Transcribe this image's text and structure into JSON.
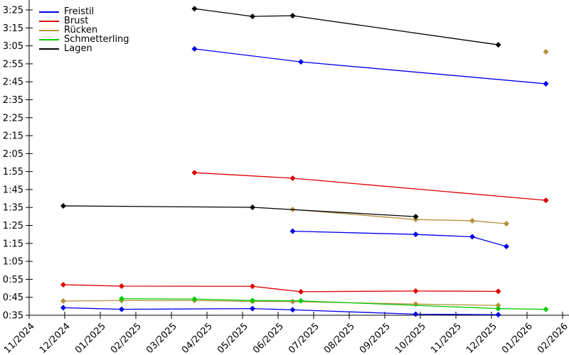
{
  "chart_data": {
    "type": "line",
    "title": "",
    "description": "Swim time progression per stroke; several distance segments per stroke; y axis is time m:ss, x axis is month/year",
    "x_axis": {
      "label": "",
      "origin_label": "11/2024",
      "tick_labels": [
        "11/2024",
        "12/2024",
        "01/2025",
        "02/2025",
        "03/2025",
        "04/2025",
        "05/2025",
        "06/2025",
        "07/2025",
        "08/2025",
        "09/2025",
        "10/2025",
        "11/2025",
        "12/2025",
        "01/2026",
        "02/2026"
      ],
      "range_month_offsets": [
        0,
        15.18
      ]
    },
    "y_axis": {
      "label": "",
      "unit": "m:ss",
      "tick_labels": [
        "0:35",
        "0:45",
        "0:55",
        "1:05",
        "1:15",
        "1:25",
        "1:35",
        "1:45",
        "1:55",
        "2:05",
        "2:15",
        "2:25",
        "2:35",
        "2:45",
        "2:55",
        "3:05",
        "3:15",
        "3:25"
      ],
      "tick_seconds": [
        35,
        45,
        55,
        65,
        75,
        85,
        95,
        105,
        115,
        125,
        135,
        145,
        155,
        165,
        175,
        185,
        195,
        205
      ],
      "range_seconds": [
        35,
        210.5
      ]
    },
    "legend": {
      "position": "top-left",
      "entries": [
        "Freistil",
        "Brust",
        "Rücken",
        "Schmetterling",
        "Lagen"
      ]
    },
    "series": [
      {
        "name": "Freistil",
        "color": "#0000ee",
        "marker": "diamond",
        "segments": [
          {
            "points_month_seconds": [
              [
                4.65,
                183.3
              ],
              [
                7.64,
                176.1
              ],
              [
                14.53,
                163.9
              ]
            ],
            "times": [
              "3:03",
              "2:56",
              "2:44"
            ]
          },
          {
            "points_month_seconds": [
              [
                7.41,
                81.8
              ],
              [
                10.87,
                80.0
              ],
              [
                12.46,
                78.7
              ],
              [
                13.42,
                73.3
              ]
            ],
            "times": [
              "1:22",
              "1:20",
              "1:19",
              "1:13"
            ]
          },
          {
            "points_month_seconds": [
              [
                0.96,
                39.2
              ],
              [
                2.6,
                38.3
              ],
              [
                6.28,
                38.7
              ],
              [
                7.41,
                38.0
              ],
              [
                10.87,
                35.6
              ],
              [
                13.19,
                35.3
              ]
            ],
            "times": [
              "0:39",
              "0:38",
              "0:39",
              "0:38",
              "0:36",
              "0:35"
            ]
          }
        ]
      },
      {
        "name": "Brust",
        "color": "#dd0000",
        "marker": "diamond",
        "segments": [
          {
            "points_month_seconds": [
              [
                4.65,
                114.4
              ],
              [
                7.41,
                111.3
              ],
              [
                14.53,
                99.0
              ]
            ],
            "times": [
              "1:54",
              "1:51",
              "1:39"
            ]
          },
          {
            "points_month_seconds": [
              [
                0.96,
                52.0
              ],
              [
                2.6,
                51.2
              ],
              [
                6.28,
                51.1
              ],
              [
                7.64,
                48.1
              ],
              [
                10.87,
                48.5
              ],
              [
                13.19,
                48.3
              ]
            ],
            "times": [
              "0:52",
              "0:51",
              "0:51",
              "0:48",
              "0:49",
              "0:48"
            ]
          }
        ]
      },
      {
        "name": "Rücken",
        "color": "#b5913c",
        "marker": "diamond",
        "segments": [
          {
            "points_month_seconds": [
              [
                7.41,
                93.9
              ],
              [
                10.87,
                88.3
              ],
              [
                12.46,
                87.6
              ],
              [
                13.42,
                86.0
              ]
            ],
            "times": [
              "1:34",
              "1:28",
              "1:28",
              "1:26"
            ]
          },
          {
            "points_month_seconds": [
              [
                0.96,
                42.9
              ],
              [
                2.6,
                43.2
              ],
              [
                4.65,
                43.2
              ],
              [
                6.28,
                42.7
              ],
              [
                7.41,
                42.6
              ],
              [
                10.87,
                41.2
              ],
              [
                13.19,
                40.5
              ]
            ],
            "times": [
              "0:43",
              "0:43",
              "0:43",
              "0:43",
              "0:43",
              "0:41",
              "0:41"
            ]
          },
          {
            "points_month_seconds": [
              [
                14.53,
                181.7
              ]
            ],
            "times": [
              "3:02"
            ]
          }
        ]
      },
      {
        "name": "Schmetterling",
        "color": "#00cc00",
        "marker": "diamond",
        "segments": [
          {
            "points_month_seconds": [
              [
                2.6,
                44.2
              ],
              [
                4.65,
                44.0
              ],
              [
                6.28,
                43.2
              ],
              [
                7.64,
                43.0
              ],
              [
                13.19,
                38.7
              ],
              [
                14.53,
                38.3
              ]
            ],
            "times": [
              "0:44",
              "0:44",
              "0:43",
              "0:43",
              "0:39",
              "0:38"
            ]
          }
        ]
      },
      {
        "name": "Lagen",
        "color": "#000000",
        "marker": "diamond",
        "segments": [
          {
            "points_month_seconds": [
              [
                4.65,
                205.7
              ],
              [
                6.28,
                201.4
              ],
              [
                7.41,
                201.8
              ],
              [
                13.19,
                185.6
              ]
            ],
            "times": [
              "3:26",
              "3:21",
              "3:22",
              "3:06"
            ]
          },
          {
            "points_month_seconds": [
              [
                0.96,
                95.9
              ],
              [
                6.28,
                95.1
              ],
              [
                10.87,
                89.9
              ]
            ],
            "times": [
              "1:36",
              "1:35",
              "1:30"
            ]
          }
        ]
      }
    ]
  }
}
